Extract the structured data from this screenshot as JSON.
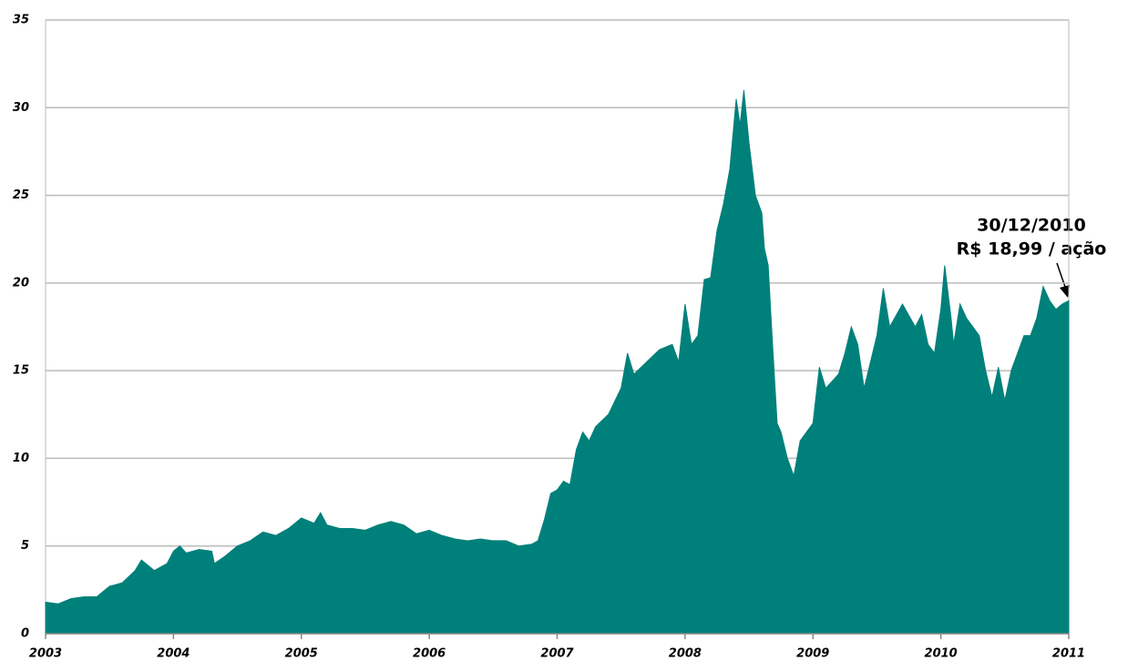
{
  "chart_data": {
    "type": "area",
    "color": "#00807a",
    "grid": true,
    "annotations": [
      "30/12/2010",
      "R$ 18,99 / ação"
    ],
    "xlim": [
      2003,
      2011
    ],
    "xticks": [
      2003,
      2004,
      2005,
      2006,
      2007,
      2008,
      2009,
      2010,
      2011
    ],
    "ylim": [
      0,
      35
    ],
    "yticks": [
      0,
      5,
      10,
      15,
      20,
      25,
      30,
      35
    ],
    "x": [
      2003.0,
      2003.1,
      2003.2,
      2003.3,
      2003.4,
      2003.5,
      2003.6,
      2003.7,
      2003.75,
      2003.85,
      2003.95,
      2004.0,
      2004.05,
      2004.1,
      2004.2,
      2004.3,
      2004.32,
      2004.4,
      2004.5,
      2004.6,
      2004.7,
      2004.8,
      2004.9,
      2005.0,
      2005.1,
      2005.15,
      2005.2,
      2005.3,
      2005.4,
      2005.5,
      2005.6,
      2005.7,
      2005.8,
      2005.9,
      2006.0,
      2006.1,
      2006.2,
      2006.3,
      2006.4,
      2006.5,
      2006.6,
      2006.7,
      2006.8,
      2006.85,
      2006.9,
      2006.95,
      2007.0,
      2007.05,
      2007.1,
      2007.15,
      2007.2,
      2007.25,
      2007.3,
      2007.4,
      2007.5,
      2007.55,
      2007.6,
      2007.7,
      2007.8,
      2007.9,
      2007.95,
      2008.0,
      2008.05,
      2008.1,
      2008.15,
      2008.2,
      2008.25,
      2008.3,
      2008.35,
      2008.4,
      2008.43,
      2008.46,
      2008.5,
      2008.55,
      2008.6,
      2008.62,
      2008.65,
      2008.68,
      2008.72,
      2008.75,
      2008.8,
      2008.85,
      2008.9,
      2008.95,
      2009.0,
      2009.05,
      2009.1,
      2009.2,
      2009.25,
      2009.3,
      2009.35,
      2009.4,
      2009.45,
      2009.5,
      2009.55,
      2009.6,
      2009.7,
      2009.8,
      2009.85,
      2009.9,
      2009.95,
      2010.0,
      2010.03,
      2010.08,
      2010.1,
      2010.15,
      2010.2,
      2010.3,
      2010.35,
      2010.4,
      2010.45,
      2010.5,
      2010.55,
      2010.6,
      2010.65,
      2010.7,
      2010.75,
      2010.8,
      2010.85,
      2010.9,
      2010.95,
      2011.0
    ],
    "values": [
      1.8,
      1.7,
      2.0,
      2.1,
      2.1,
      2.7,
      2.9,
      3.6,
      4.2,
      3.6,
      4.0,
      4.7,
      5.0,
      4.6,
      4.8,
      4.7,
      4.0,
      4.4,
      5.0,
      5.3,
      5.8,
      5.6,
      6.0,
      6.6,
      6.3,
      6.9,
      6.2,
      6.0,
      6.0,
      5.9,
      6.2,
      6.4,
      6.2,
      5.7,
      5.9,
      5.6,
      5.4,
      5.3,
      5.4,
      5.3,
      5.3,
      5.0,
      5.1,
      5.3,
      6.5,
      8.0,
      8.2,
      8.7,
      8.5,
      10.5,
      11.5,
      11.0,
      11.8,
      12.5,
      14.0,
      16.0,
      14.8,
      15.5,
      16.2,
      16.5,
      15.5,
      18.8,
      16.5,
      17.0,
      20.2,
      20.3,
      23.0,
      24.5,
      26.5,
      30.5,
      29.0,
      31.0,
      28.0,
      25.0,
      24.0,
      22.0,
      21.0,
      17.0,
      12.0,
      11.5,
      10.0,
      9.0,
      11.0,
      11.5,
      12.0,
      15.2,
      14.0,
      14.8,
      16.0,
      17.5,
      16.5,
      14.0,
      15.5,
      17.0,
      19.7,
      17.5,
      18.8,
      17.5,
      18.2,
      16.5,
      16.0,
      18.5,
      21.0,
      18.0,
      16.5,
      18.8,
      18.0,
      17.0,
      15.0,
      13.5,
      15.2,
      13.3,
      15.0,
      16.0,
      17.0,
      17.0,
      18.0,
      19.8,
      19.0,
      18.5,
      18.8,
      18.99
    ]
  }
}
